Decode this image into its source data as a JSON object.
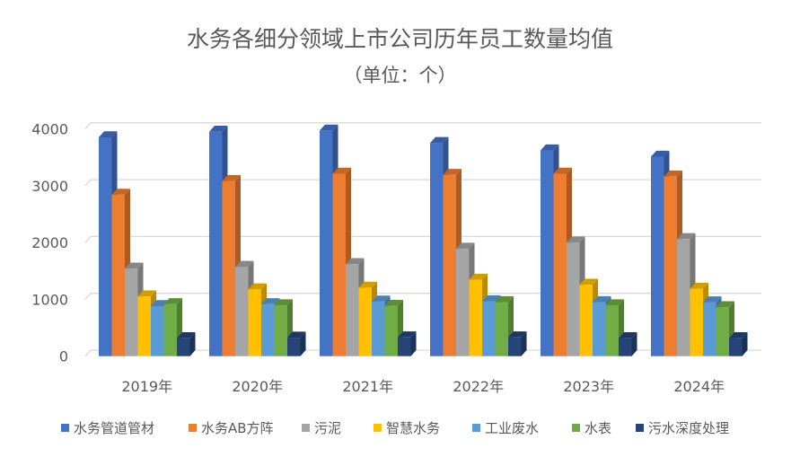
{
  "chart_data": {
    "type": "bar",
    "title": "水务各细分领域上市公司历年员工数量均值",
    "subtitle": "（单位：个）",
    "categories": [
      "2019年",
      "2020年",
      "2021年",
      "2022年",
      "2023年",
      "2024年"
    ],
    "ylim": [
      0,
      4000
    ],
    "yticks": [
      "0",
      "1000",
      "2000",
      "3000",
      "4000"
    ],
    "grid": true,
    "legend": "bottom",
    "style": "3d-clustered-column",
    "series": [
      {
        "name": "水务管道管材",
        "color": "#4472C4",
        "values": [
          3850,
          3950,
          3970,
          3750,
          3620,
          3510
        ]
      },
      {
        "name": "水务AB方阵",
        "color": "#ED7D31",
        "values": [
          2840,
          3080,
          3210,
          3190,
          3210,
          3160
        ]
      },
      {
        "name": "污泥",
        "color": "#A5A5A5",
        "values": [
          1540,
          1570,
          1620,
          1890,
          2000,
          2060
        ]
      },
      {
        "name": "智慧水务",
        "color": "#FFC000",
        "values": [
          1050,
          1175,
          1205,
          1345,
          1255,
          1185
        ]
      },
      {
        "name": "工业废水",
        "color": "#5B9BD5",
        "values": [
          880,
          915,
          960,
          965,
          950,
          945
        ]
      },
      {
        "name": "水表",
        "color": "#70AD47",
        "values": [
          915,
          895,
          885,
          950,
          895,
          860
        ]
      },
      {
        "name": "污水深度处理",
        "color": "#264478",
        "values": [
          315,
          325,
          330,
          330,
          315,
          315
        ]
      }
    ]
  }
}
